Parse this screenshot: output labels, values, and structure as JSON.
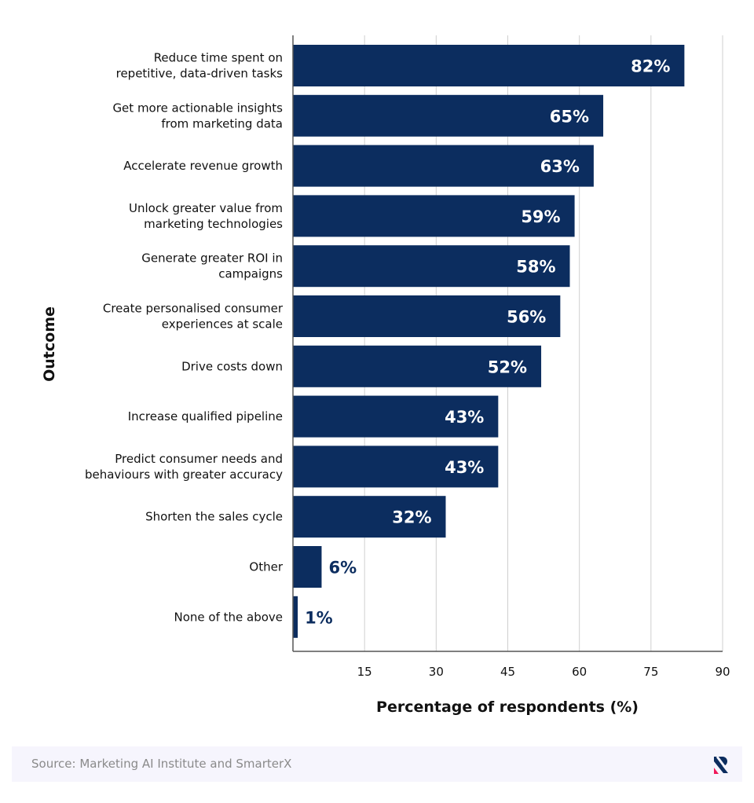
{
  "chart_data": {
    "type": "bar",
    "orientation": "horizontal",
    "categories": [
      "Reduce time spent on\nrepetitive, data-driven tasks",
      "Get more actionable insights\nfrom marketing data",
      "Accelerate revenue growth",
      "Unlock greater value from\nmarketing technologies",
      "Generate greater ROI in\ncampaigns",
      "Create personalised consumer\nexperiences at scale",
      "Drive costs down",
      "Increase qualified pipeline",
      "Predict consumer needs and\nbehaviours with greater accuracy",
      "Shorten the sales cycle",
      "Other",
      "None of the above"
    ],
    "values": [
      82,
      65,
      63,
      59,
      58,
      56,
      52,
      43,
      43,
      32,
      6,
      1
    ],
    "data_labels": [
      "82%",
      "65%",
      "63%",
      "59%",
      "58%",
      "56%",
      "52%",
      "43%",
      "43%",
      "32%",
      "6%",
      "1%"
    ],
    "xlabel": "Percentage of respondents (%)",
    "ylabel": "Outcome",
    "xlim": [
      0,
      90
    ],
    "xticks": [
      15,
      30,
      45,
      60,
      75,
      90
    ],
    "grid": "vertical",
    "bar_color": "#0c2d5f",
    "label_inside_color": "#ffffff",
    "label_outside_color": "#0c2d5f"
  },
  "footer": {
    "source": "Source: Marketing AI Institute and SmarterX",
    "logo_text": "R",
    "logo_colors": [
      "#0c2d5f",
      "#f0185a"
    ]
  }
}
